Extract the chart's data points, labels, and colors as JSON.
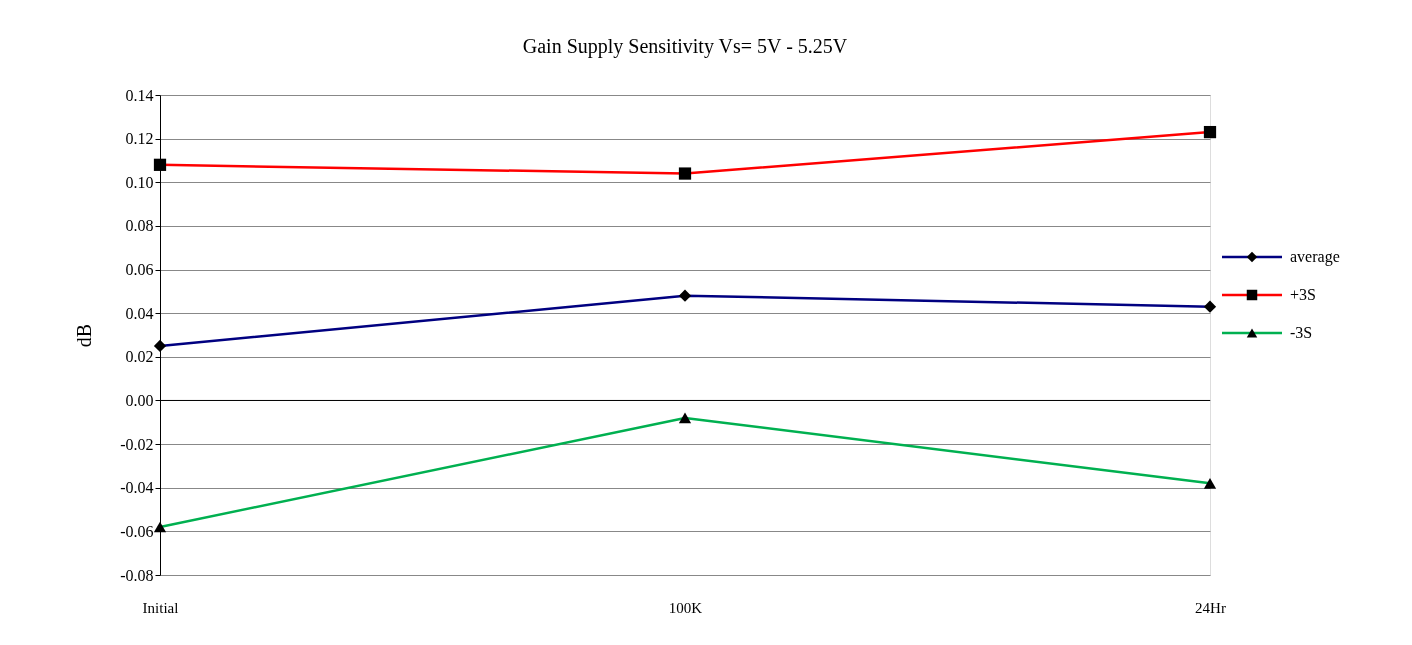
{
  "chart_data": {
    "type": "line",
    "title": "Gain Supply Sensitivity Vs= 5V - 5.25V",
    "ylabel": "dB",
    "categories": [
      "Initial",
      "100K",
      "24Hr"
    ],
    "series": [
      {
        "name": "average",
        "color": "#000080",
        "marker": "diamond",
        "values": [
          0.025,
          0.048,
          0.043
        ]
      },
      {
        "name": "+3S",
        "color": "#ff0000",
        "marker": "square",
        "values": [
          0.108,
          0.104,
          0.123
        ]
      },
      {
        "name": "-3S",
        "color": "#00b050",
        "marker": "triangle",
        "values": [
          -0.058,
          -0.008,
          -0.038
        ]
      }
    ],
    "ylim": [
      -0.08,
      0.14
    ],
    "yticks": [
      {
        "value": -0.08,
        "label": "-0.08"
      },
      {
        "value": -0.06,
        "label": "-0.06"
      },
      {
        "value": -0.04,
        "label": "-0.04"
      },
      {
        "value": -0.02,
        "label": "-0.02"
      },
      {
        "value": 0,
        "label": "0.00"
      },
      {
        "value": 0.02,
        "label": "0.02"
      },
      {
        "value": 0.04,
        "label": "0.04"
      },
      {
        "value": 0.06,
        "label": "0.06"
      },
      {
        "value": 0.08,
        "label": "0.08"
      },
      {
        "value": 0.1,
        "label": "0.10"
      },
      {
        "value": 0.12,
        "label": "0.12"
      },
      {
        "value": 0.14,
        "label": "0.14"
      }
    ],
    "ref_lines": [
      {
        "axis": "y",
        "value": 0,
        "color": "#000000"
      }
    ],
    "grid": "y",
    "legend": "right",
    "line_style": "solid"
  }
}
